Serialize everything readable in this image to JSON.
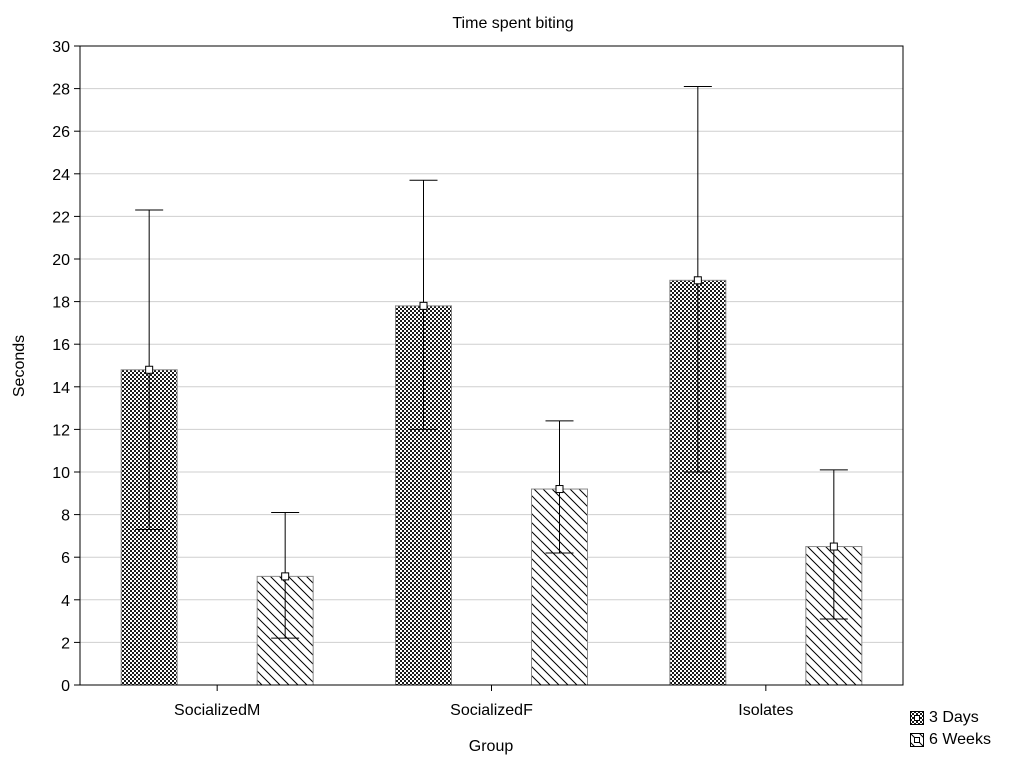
{
  "chart_data": {
    "type": "bar",
    "title": "Time spent biting",
    "xlabel": "Group",
    "ylabel": "Seconds",
    "ylim": [
      0,
      30
    ],
    "yticks": [
      0,
      2,
      4,
      6,
      8,
      10,
      12,
      14,
      16,
      18,
      20,
      22,
      24,
      26,
      28,
      30
    ],
    "grid": true,
    "legend": "bottom-right",
    "categories": [
      "SocializedM",
      "SocializedF",
      "Isolates"
    ],
    "series": [
      {
        "name": "3 Days",
        "pattern": "checkered",
        "values": [
          14.8,
          17.8,
          19.0
        ],
        "error_low": [
          7.3,
          12.0,
          10.0
        ],
        "error_high": [
          22.3,
          23.7,
          28.1
        ]
      },
      {
        "name": "6 Weeks",
        "pattern": "diagonal-hatch",
        "values": [
          5.1,
          9.2,
          6.5
        ],
        "error_low": [
          2.2,
          6.2,
          3.1
        ],
        "error_high": [
          8.1,
          12.4,
          10.1
        ]
      }
    ]
  }
}
